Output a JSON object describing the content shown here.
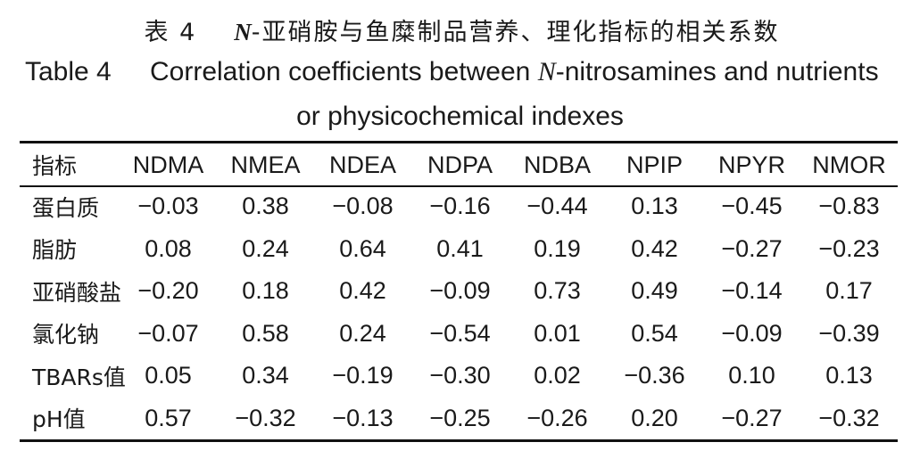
{
  "title_cn": {
    "label": "表 4",
    "n": "N",
    "rest": "-亚硝胺与鱼糜制品营养、理化指标的相关系数"
  },
  "title_en": {
    "label": "Table 4",
    "pre": "Correlation coefficients between ",
    "n": "N",
    "post": "-nitrosamines and nutrients",
    "line2": "or physicochemical indexes"
  },
  "table": {
    "headers": [
      "指标",
      "NDMA",
      "NMEA",
      "NDEA",
      "NDPA",
      "NDBA",
      "NPIP",
      "NPYR",
      "NMOR"
    ],
    "rows": [
      [
        "蛋白质",
        "−0.03",
        "0.38",
        "−0.08",
        "−0.16",
        "−0.44",
        "0.13",
        "−0.45",
        "−0.83"
      ],
      [
        "脂肪",
        "0.08",
        "0.24",
        "0.64",
        "0.41",
        "0.19",
        "0.42",
        "−0.27",
        "−0.23"
      ],
      [
        "亚硝酸盐",
        "−0.20",
        "0.18",
        "0.42",
        "−0.09",
        "0.73",
        "0.49",
        "−0.14",
        "0.17"
      ],
      [
        "氯化钠",
        "−0.07",
        "0.58",
        "0.24",
        "−0.54",
        "0.01",
        "0.54",
        "−0.09",
        "−0.39"
      ],
      [
        "TBARs值",
        "0.05",
        "0.34",
        "−0.19",
        "−0.30",
        "0.02",
        "−0.36",
        "0.10",
        "0.13"
      ],
      [
        "pH值",
        "0.57",
        "−0.32",
        "−0.13",
        "−0.25",
        "−0.26",
        "0.20",
        "−0.27",
        "−0.32"
      ]
    ]
  }
}
